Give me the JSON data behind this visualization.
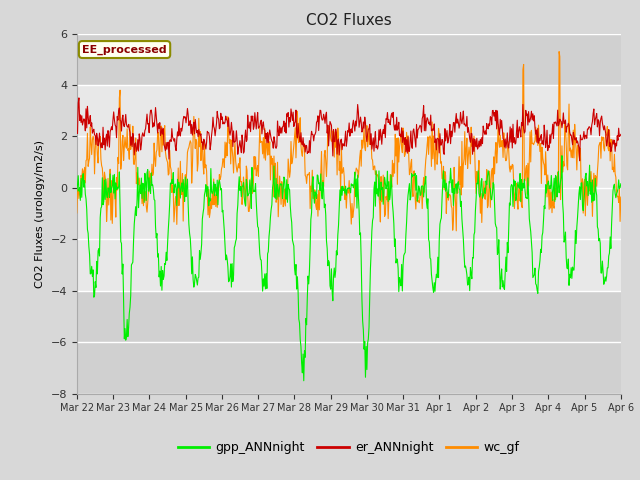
{
  "title": "CO2 Fluxes",
  "ylabel": "CO2 Fluxes (urology/m2/s)",
  "ylim": [
    -8,
    6
  ],
  "yticks": [
    -8,
    -6,
    -4,
    -2,
    0,
    2,
    4,
    6
  ],
  "n_days": 16,
  "n_per_day": 48,
  "colors": {
    "gpp": "#00ee00",
    "er": "#cc0000",
    "wc": "#ff8c00"
  },
  "legend_labels": [
    "gpp_ANNnight",
    "er_ANNnight",
    "wc_gf"
  ],
  "annotation_text": "EE_processed",
  "annotation_color": "#8B0000",
  "annotation_bg": "#fffff0",
  "annotation_border": "#8B8B00",
  "fig_bg": "#d8d8d8",
  "plot_bg": "#e8e8e8",
  "plot_band_bg": "#d0d0d0",
  "grid_color": "white",
  "date_labels": [
    "Mar 22",
    "Mar 23",
    "Mar 24",
    "Mar 25",
    "Mar 26",
    "Mar 27",
    "Mar 28",
    "Mar 29",
    "Mar 30",
    "Mar 31",
    "Apr 1",
    "Apr 2",
    "Apr 3",
    "Apr 4",
    "Apr 5",
    "Apr 6"
  ],
  "linewidth": 0.8,
  "seed": 99
}
